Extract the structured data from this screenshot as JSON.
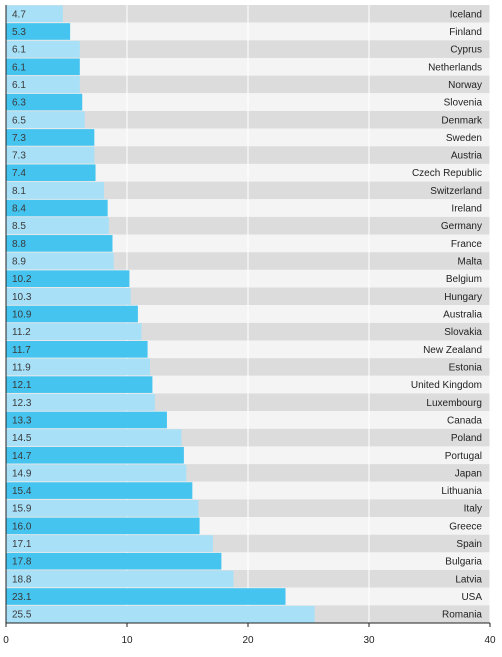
{
  "chart_data": {
    "type": "bar",
    "orientation": "horizontal",
    "categories": [
      "Iceland",
      "Finland",
      "Cyprus",
      "Netherlands",
      "Norway",
      "Slovenia",
      "Denmark",
      "Sweden",
      "Austria",
      "Czech Republic",
      "Switzerland",
      "Ireland",
      "Germany",
      "France",
      "Malta",
      "Belgium",
      "Hungary",
      "Australia",
      "Slovakia",
      "New Zealand",
      "Estonia",
      "United Kingdom",
      "Luxembourg",
      "Canada",
      "Poland",
      "Portugal",
      "Japan",
      "Lithuania",
      "Italy",
      "Greece",
      "Spain",
      "Bulgaria",
      "Latvia",
      "USA",
      "Romania"
    ],
    "values": [
      4.7,
      5.3,
      6.1,
      6.1,
      6.1,
      6.3,
      6.5,
      7.3,
      7.3,
      7.4,
      8.1,
      8.4,
      8.5,
      8.8,
      8.9,
      10.2,
      10.3,
      10.9,
      11.2,
      11.7,
      11.9,
      12.1,
      12.3,
      13.3,
      14.5,
      14.7,
      14.9,
      15.4,
      15.9,
      16.0,
      17.1,
      17.8,
      18.8,
      23.1,
      25.5
    ],
    "value_labels": [
      "4.7",
      "5.3",
      "6.1",
      "6.1",
      "6.1",
      "6.3",
      "6.5",
      "7.3",
      "7.3",
      "7.4",
      "8.1",
      "8.4",
      "8.5",
      "8.8",
      "8.9",
      "10.2",
      "10.3",
      "10.9",
      "11.2",
      "11.7",
      "11.9",
      "12.1",
      "12.3",
      "13.3",
      "14.5",
      "14.7",
      "14.9",
      "15.4",
      "15.9",
      "16.0",
      "17.1",
      "17.8",
      "18.8",
      "23.1",
      "25.5"
    ],
    "xlim": [
      0,
      40
    ],
    "xticks": [
      0,
      10,
      20,
      30,
      40
    ],
    "xtick_labels": [
      "0",
      "10",
      "20",
      "30",
      "40"
    ],
    "title": "",
    "xlabel": "",
    "ylabel": "",
    "grid": true,
    "legend": "none",
    "colors": {
      "bar_dark": "#46c4f0",
      "bar_light": "#a8e0f8",
      "row_dark": "#dcdcdc",
      "row_light": "#f4f4f4",
      "gridline": "#ffffff",
      "axis": "#222222"
    }
  }
}
